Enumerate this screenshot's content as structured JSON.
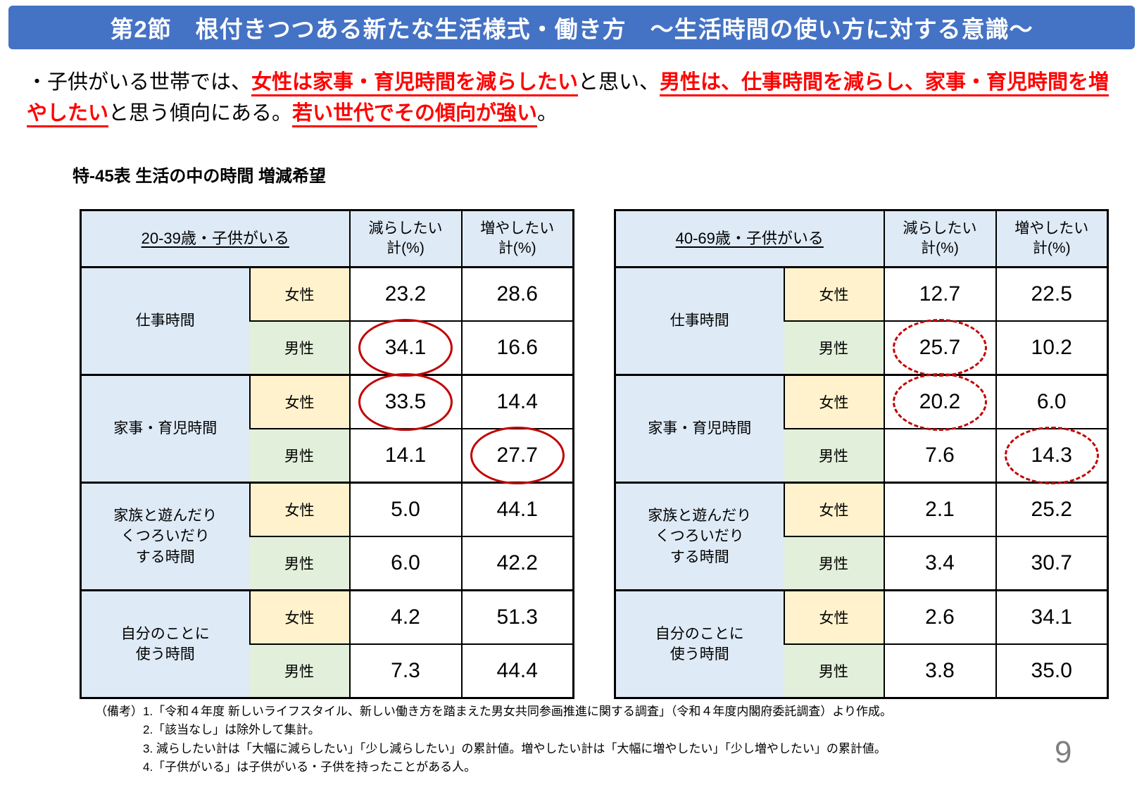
{
  "banner": {
    "title": "第2節　根付きつつある新たな生活様式・働き方　～生活時間の使い方に対する意識～",
    "bg_color": "#4472C4",
    "text_color": "#FFFFFF"
  },
  "lead": {
    "accent_color": "#FF0000",
    "segments": [
      {
        "text": "・子供がいる世帯では、",
        "style": "plain"
      },
      {
        "text": "女性は家事・育児時間を減らしたい",
        "style": "red-underline"
      },
      {
        "text": "と思い、",
        "style": "plain"
      },
      {
        "text": "男性は、仕事時間を減らし、家事・育児時間を増やしたい",
        "style": "red-underline"
      },
      {
        "text": "と思う傾向にある。",
        "style": "plain"
      },
      {
        "text": "若い世代でその傾向が強い",
        "style": "red-underline"
      },
      {
        "text": "。",
        "style": "plain"
      }
    ]
  },
  "caption": "特‐45表 生活の中の時間 増減希望",
  "labels": {
    "female": "女性",
    "male": "男性"
  },
  "col_headers": {
    "decrease": "減らしたい\n計(%)",
    "increase": "増やしたい\n計(%)"
  },
  "tables": [
    {
      "age_label": "20-39歳・子供がいる",
      "circle_style": "solid",
      "groups": [
        {
          "category": "仕事時間",
          "female": {
            "dec": "23.2",
            "inc": "28.6"
          },
          "male": {
            "dec": "34.1",
            "inc": "16.6"
          }
        },
        {
          "category": "家事・育児時間",
          "female": {
            "dec": "33.5",
            "inc": "14.4"
          },
          "male": {
            "dec": "14.1",
            "inc": "27.7"
          }
        },
        {
          "category": "家族と遊んだり\nくつろいだり\nする時間",
          "female": {
            "dec": "5.0",
            "inc": "44.1"
          },
          "male": {
            "dec": "6.0",
            "inc": "42.2"
          }
        },
        {
          "category": "自分のことに\n使う時間",
          "female": {
            "dec": "4.2",
            "inc": "51.3"
          },
          "male": {
            "dec": "7.3",
            "inc": "44.4"
          }
        }
      ],
      "highlights": [
        {
          "category": "仕事時間",
          "gender": "男性",
          "column": "減らしたい計",
          "value": "34.1"
        },
        {
          "category": "家事・育児時間",
          "gender": "女性",
          "column": "減らしたい計",
          "value": "33.5"
        },
        {
          "category": "家事・育児時間",
          "gender": "男性",
          "column": "増やしたい計",
          "value": "27.7"
        }
      ]
    },
    {
      "age_label": "40-69歳・子供がいる",
      "circle_style": "dashed",
      "groups": [
        {
          "category": "仕事時間",
          "female": {
            "dec": "12.7",
            "inc": "22.5"
          },
          "male": {
            "dec": "25.7",
            "inc": "10.2"
          }
        },
        {
          "category": "家事・育児時間",
          "female": {
            "dec": "20.2",
            "inc": "6.0"
          },
          "male": {
            "dec": "7.6",
            "inc": "14.3"
          }
        },
        {
          "category": "家族と遊んだり\nくつろいだり\nする時間",
          "female": {
            "dec": "2.1",
            "inc": "25.2"
          },
          "male": {
            "dec": "3.4",
            "inc": "30.7"
          }
        },
        {
          "category": "自分のことに\n使う時間",
          "female": {
            "dec": "2.6",
            "inc": "34.1"
          },
          "male": {
            "dec": "3.8",
            "inc": "35.0"
          }
        }
      ],
      "highlights": [
        {
          "category": "仕事時間",
          "gender": "男性",
          "column": "減らしたい計",
          "value": "25.7"
        },
        {
          "category": "家事・育児時間",
          "gender": "女性",
          "column": "減らしたい計",
          "value": "20.2"
        },
        {
          "category": "家事・育児時間",
          "gender": "男性",
          "column": "増やしたい計",
          "value": "14.3"
        }
      ]
    }
  ],
  "notes": {
    "prefix": "（備考）",
    "items": [
      "1.「令和４年度 新しいライフスタイル、新しい働き方を踏まえた男女共同参画推進に関する調査」（令和４年度内閣府委託調査）より作成。",
      "2.「該当なし」は除外して集計。",
      "3. 減らしたい計は「大幅に減らしたい」「少し減らしたい」の累計値。増やしたい計は「大幅に増やしたい」「少し増やしたい」の累計値。",
      "4.「子供がいる」は子供がいる・子供を持ったことがある人。"
    ]
  },
  "page": {
    "number": "9"
  },
  "colors": {
    "banner_blue": "#4472C4",
    "header_cell_blue": "#DEEAF6",
    "female_yellow": "#FFF2CC",
    "male_green": "#E2EFDA",
    "circle_red": "#C00000",
    "accent_red": "#FF0000",
    "page_number_gray": "#7F7F7F"
  }
}
